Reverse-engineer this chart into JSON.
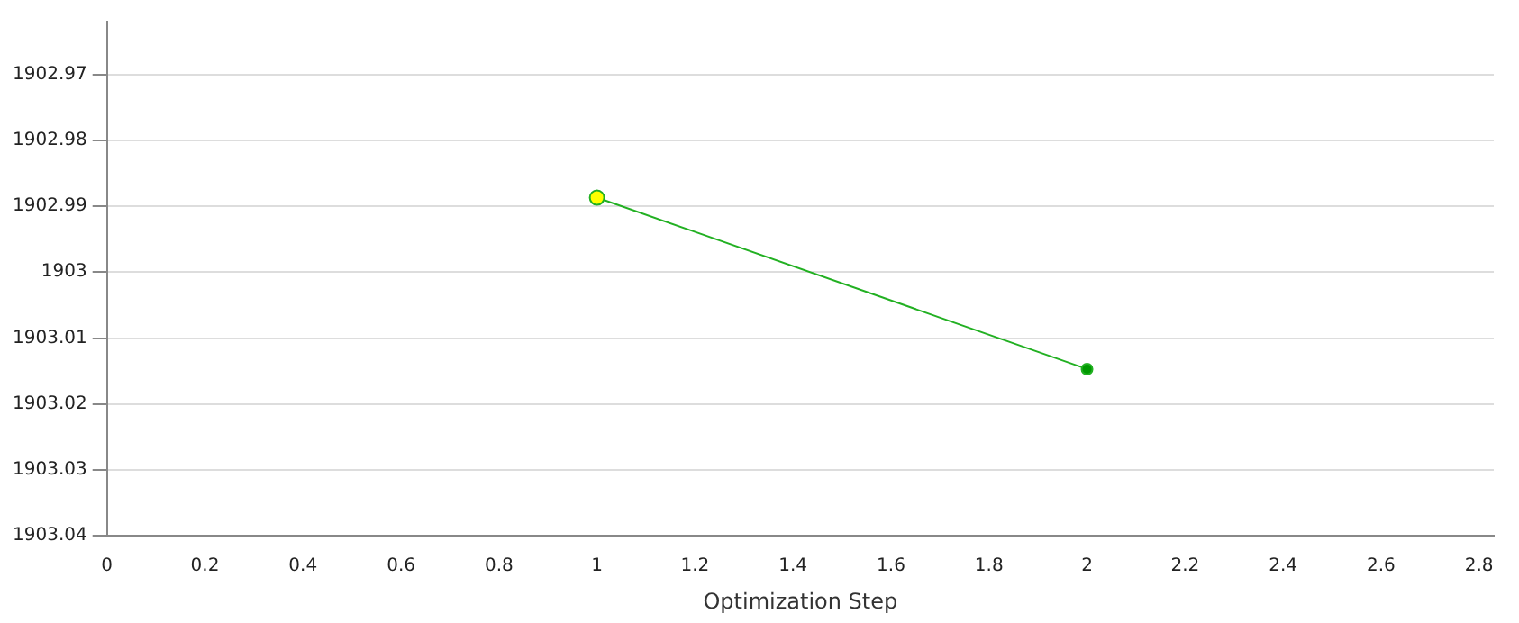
{
  "chart_data": {
    "type": "line",
    "xlabel": "Optimization Step",
    "x": [
      1,
      2
    ],
    "series": [
      {
        "color": "#22b022",
        "colors": [
          "#ffff00",
          "#009900"
        ],
        "values": [
          1902.9887,
          1903.0147
        ]
      }
    ],
    "xlim": [
      0,
      2.83
    ],
    "xticks": [
      0,
      0.2,
      0.4,
      0.6,
      0.8,
      1,
      1.2,
      1.4,
      1.6,
      1.8,
      2,
      2.2,
      2.4,
      2.6,
      2.8
    ],
    "ylim": [
      1903.04,
      1902.962
    ],
    "yticks": [
      1902.97,
      1902.98,
      1902.99,
      1903,
      1903.01,
      1903.02,
      1903.03,
      1903.04
    ],
    "grid": "y",
    "legend": false,
    "marker": "circle",
    "line_style": "solid"
  }
}
